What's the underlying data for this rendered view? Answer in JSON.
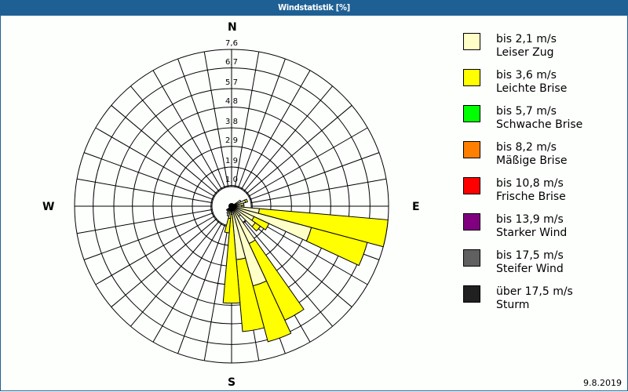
{
  "window": {
    "title": "Windstatistik [%]"
  },
  "compass": {
    "north": "N",
    "east": "E",
    "south": "S",
    "west": "W"
  },
  "date": "9.8.2019",
  "legend": [
    {
      "line1": "bis 2,1 m/s",
      "line2": "Leiser Zug",
      "color": "#ffffc8"
    },
    {
      "line1": "bis 3,6 m/s",
      "line2": "Leichte Brise",
      "color": "#ffff00"
    },
    {
      "line1": "bis 5,7 m/s",
      "line2": "Schwache Brise",
      "color": "#00ff00"
    },
    {
      "line1": "bis 8,2 m/s",
      "line2": "Mäßige Brise",
      "color": "#ff8000"
    },
    {
      "line1": "bis 10,8 m/s",
      "line2": "Frische Brise",
      "color": "#ff0000"
    },
    {
      "line1": "bis 13,9 m/s",
      "line2": "Starker Wind",
      "color": "#800080"
    },
    {
      "line1": "bis 17,5 m/s",
      "line2": "Steifer Wind",
      "color": "#606060"
    },
    {
      "line1": "über 17,5 m/s",
      "line2": "Sturm",
      "color": "#202020"
    }
  ],
  "ring_labels": [
    "1,0",
    "1,9",
    "2,9",
    "3,8",
    "4,8",
    "5,7",
    "6,7",
    "7,6"
  ],
  "chart_data": {
    "type": "polar-bar (wind rose)",
    "title": "Windstatistik [%]",
    "unit": "%",
    "rmax": 7.6,
    "rings": [
      1.0,
      1.9,
      2.9,
      3.8,
      4.8,
      5.7,
      6.7,
      7.6
    ],
    "sector_width_deg": 10,
    "directions_deg": [
      60,
      70,
      80,
      90,
      100,
      110,
      120,
      130,
      140,
      150,
      160,
      170,
      180,
      190,
      200,
      210,
      220,
      230
    ],
    "series": [
      {
        "name": "bis 2,1 m/s (Leiser Zug)",
        "values": [
          0.5,
          0.7,
          0.6,
          0.5,
          1.35,
          4.0,
          1.2,
          1.4,
          0.6,
          2.0,
          4.0,
          2.6,
          0.4,
          0.6,
          0.5,
          0.4,
          0.3,
          0.3
        ]
      },
      {
        "name": "bis 3,6 m/s (Leichte Brise)",
        "values": [
          0.0,
          0.1,
          0.0,
          0.1,
          6.25,
          2.8,
          0.8,
          0.3,
          0.0,
          4.1,
          2.8,
          3.5,
          4.3,
          0.7,
          0.0,
          0.0,
          0.0,
          0.0
        ]
      },
      {
        "name": "bis 5,7 m/s (Schwache Brise)",
        "values": [
          0,
          0,
          0,
          0,
          0,
          0,
          0,
          0,
          0,
          0,
          0,
          0,
          0,
          0,
          0,
          0,
          0,
          0
        ]
      },
      {
        "name": "bis 8,2 m/s (Mäßige Brise)",
        "values": [
          0,
          0,
          0,
          0,
          0,
          0,
          0,
          0,
          0,
          0,
          0,
          0,
          0,
          0,
          0,
          0,
          0,
          0
        ]
      },
      {
        "name": "bis 10,8 m/s (Frische Brise)",
        "values": [
          0,
          0,
          0,
          0,
          0,
          0,
          0,
          0,
          0,
          0,
          0,
          0,
          0,
          0,
          0,
          0,
          0,
          0
        ]
      },
      {
        "name": "bis 13,9 m/s (Starker Wind)",
        "values": [
          0,
          0,
          0,
          0,
          0,
          0,
          0,
          0,
          0,
          0,
          0,
          0,
          0,
          0,
          0,
          0,
          0,
          0
        ]
      },
      {
        "name": "bis 17,5 m/s (Steifer Wind)",
        "values": [
          0,
          0,
          0,
          0,
          0,
          0,
          0,
          0,
          0,
          0,
          0,
          0,
          0,
          0,
          0,
          0,
          0,
          0
        ]
      },
      {
        "name": "über 17,5 m/s (Sturm)",
        "values": [
          0,
          0,
          0,
          0,
          0,
          0,
          0,
          0,
          0,
          0,
          0,
          0,
          0,
          0,
          0,
          0,
          0,
          0
        ]
      }
    ],
    "legend_position": "right"
  }
}
